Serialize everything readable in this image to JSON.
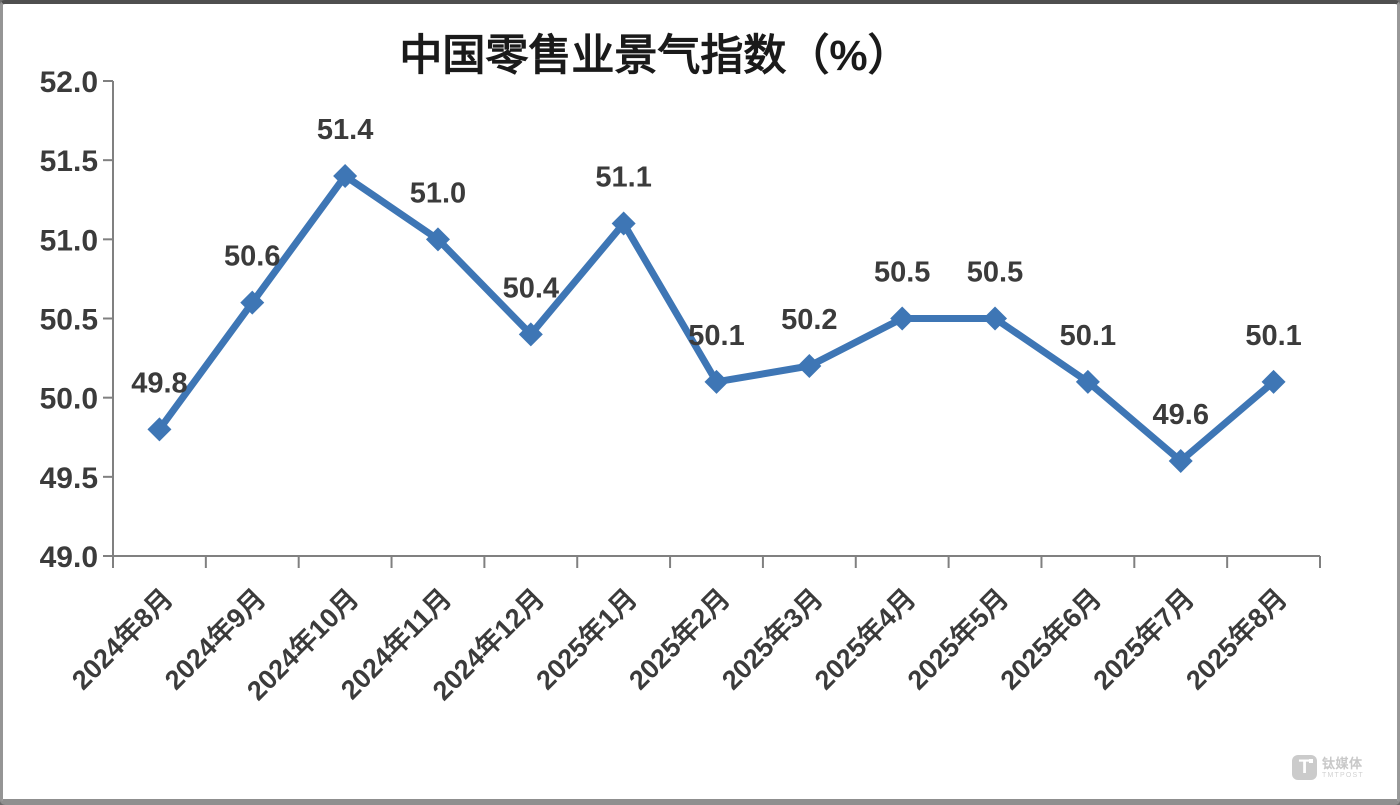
{
  "chart_data": {
    "type": "line",
    "title": "中国零售业景气指数（%）",
    "categories": [
      "2024年8月",
      "2024年9月",
      "2024年10月",
      "2024年11月",
      "2024年12月",
      "2025年1月",
      "2025年2月",
      "2025年3月",
      "2025年4月",
      "2025年5月",
      "2025年6月",
      "2025年7月",
      "2025年8月"
    ],
    "values": [
      49.8,
      50.6,
      51.4,
      51.0,
      50.4,
      51.1,
      50.1,
      50.2,
      50.5,
      50.5,
      50.1,
      49.6,
      50.1
    ],
    "ylim": [
      49.0,
      52.0
    ],
    "ytick_step": 0.5,
    "series_color": "#3E76B5",
    "data_label_color": "#3B3B3B",
    "axis_label_color": "#3B3B3B",
    "axis_color": "#808080",
    "grid": false,
    "legend": false,
    "marker": "diamond"
  },
  "watermark": {
    "logo_letter": "T",
    "name": "钛媒体",
    "subtitle": "TMTPOST"
  }
}
